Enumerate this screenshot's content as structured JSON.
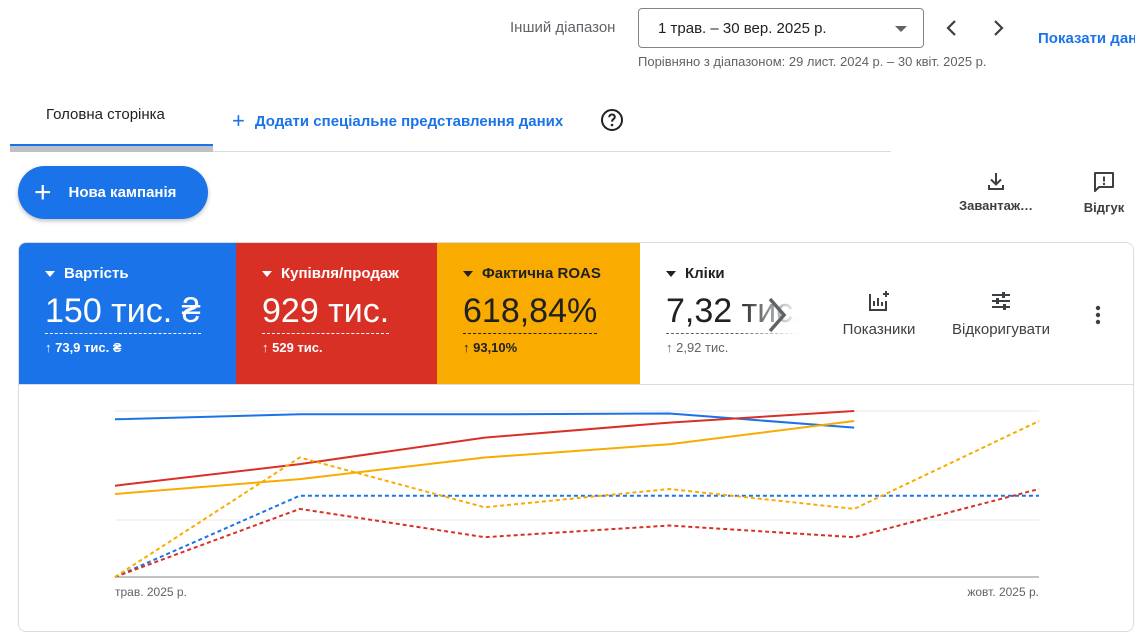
{
  "header": {
    "range_label": "Інший діапазон",
    "date_range": "1 трав. – 30 вер. 2025 р.",
    "compare_text": "Порівняно з діапазоном: 29 лист. 2024 р. – 30 квіт. 2025 р.",
    "show_data_label": "Показати дан"
  },
  "tabs": {
    "main_label": "Головна сторінка",
    "add_view_label": "Додати спеціальне представлення даних"
  },
  "toolbar": {
    "new_campaign_label": "Нова кампанія",
    "download_label": "Завантаж…",
    "feedback_label": "Відгук"
  },
  "metrics": [
    {
      "name": "Вартість",
      "value": "150 тис. ₴",
      "delta": "↑ 73,9 тис. ₴",
      "color": "#1a73e8"
    },
    {
      "name": "Купівля/продаж",
      "value": "929 тис.",
      "delta": "↑ 529 тис.",
      "color": "#d93025"
    },
    {
      "name": "Фактична ROAS",
      "value": "618,84%",
      "delta": "↑ 93,10%",
      "color": "#f9ab00"
    },
    {
      "name": "Кліки",
      "value": "7,32 тис.",
      "delta": "↑ 2,92 тис."
    }
  ],
  "card_tools": {
    "metrics_label": "Показники",
    "adjust_label": "Відкоригувати"
  },
  "chart_data": {
    "type": "line",
    "x": [
      "трав. 2025 р.",
      "",
      "",
      "",
      "",
      "жовт. 2025 р."
    ],
    "series": [
      {
        "metric": "Вартість",
        "color": "#1a73e8",
        "style": "solid",
        "values": [
          0.95,
          0.98,
          0.98,
          0.985,
          0.9,
          null
        ]
      },
      {
        "metric": "Купівля/продаж",
        "color": "#d93025",
        "style": "solid",
        "values": [
          0.55,
          0.68,
          0.84,
          0.93,
          1.0,
          null
        ]
      },
      {
        "metric": "Фактична ROAS",
        "color": "#f9ab00",
        "style": "solid",
        "values": [
          0.5,
          0.59,
          0.72,
          0.8,
          0.94,
          null
        ]
      },
      {
        "metric": "Вартість",
        "color": "#1a73e8",
        "style": "dashed",
        "values": [
          0.0,
          0.49,
          0.49,
          0.49,
          0.49,
          0.49
        ]
      },
      {
        "metric": "Купівля/продаж",
        "color": "#d93025",
        "style": "dashed",
        "values": [
          0.0,
          0.41,
          0.24,
          0.31,
          0.24,
          0.53
        ]
      },
      {
        "metric": "Фактична ROAS",
        "color": "#f9ab00",
        "style": "dashed",
        "values": [
          0.0,
          0.72,
          0.42,
          0.53,
          0.41,
          0.94
        ]
      }
    ],
    "ylim": [
      0,
      1
    ],
    "grid": true
  }
}
